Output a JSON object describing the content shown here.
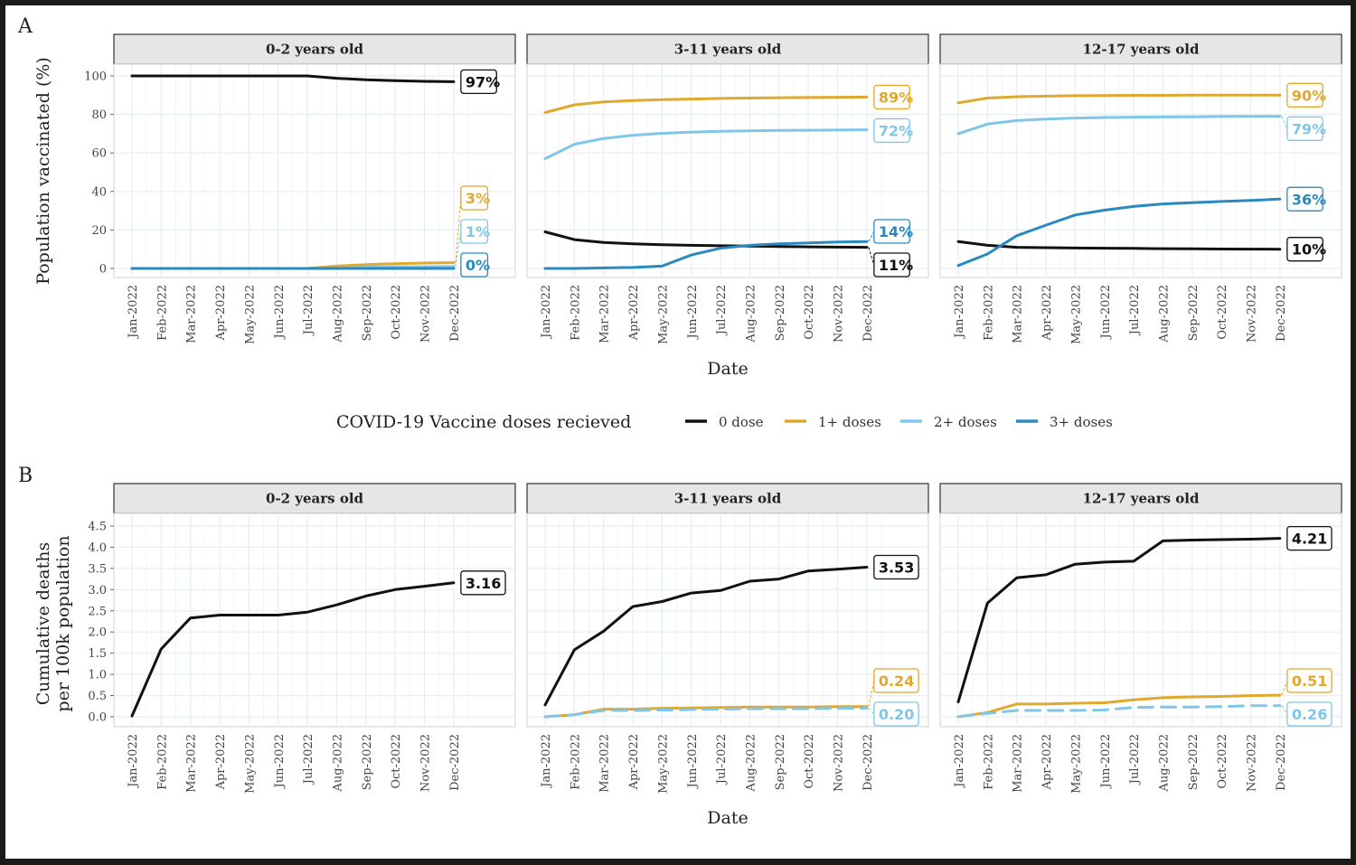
{
  "colors": {
    "0 dose": "#111111",
    "1+ doses": "#E0A82E",
    "2+ doses": "#7FC6E8",
    "3+ doses": "#2A8ABF",
    "strip_fill": "#E6E6E6",
    "grid": "#E7EEF2"
  },
  "chart_data": [
    {
      "type": "line",
      "panel": "A",
      "ylabel": "Population vaccinated (%)",
      "xlabel": "Date",
      "ylim": [
        0,
        100
      ],
      "yticks": [
        "0",
        "20",
        "40",
        "60",
        "80",
        "100"
      ],
      "categories": [
        "Jan-2022",
        "Feb-2022",
        "Mar-2022",
        "Apr-2022",
        "May-2022",
        "Jun-2022",
        "Jul-2022",
        "Aug-2022",
        "Sep-2022",
        "Oct-2022",
        "Nov-2022",
        "Dec-2022"
      ],
      "facets": [
        {
          "title": "0-2 years old",
          "series": [
            {
              "name": "0 dose",
              "values": [
                100,
                100,
                100,
                100,
                100,
                100,
                100,
                98.8,
                98,
                97.5,
                97.2,
                97
              ],
              "end_label": "97%"
            },
            {
              "name": "1+ doses",
              "values": [
                0,
                0,
                0,
                0,
                0,
                0,
                0,
                1.2,
                2,
                2.5,
                2.8,
                3
              ],
              "end_label": "3%"
            },
            {
              "name": "2+ doses",
              "values": [
                0,
                0,
                0,
                0,
                0,
                0,
                0,
                0.3,
                0.6,
                0.8,
                0.9,
                1
              ],
              "end_label": "1%"
            },
            {
              "name": "3+ doses",
              "values": [
                0,
                0,
                0,
                0,
                0,
                0,
                0,
                0,
                0,
                0,
                0,
                0
              ],
              "end_label": "0%"
            }
          ]
        },
        {
          "title": "3-11 years old",
          "series": [
            {
              "name": "0 dose",
              "values": [
                19,
                15,
                13.5,
                12.8,
                12.3,
                12,
                11.8,
                11.6,
                11.4,
                11.2,
                11.1,
                11
              ],
              "end_label": "11%"
            },
            {
              "name": "1+ doses",
              "values": [
                81,
                85,
                86.5,
                87.2,
                87.7,
                88,
                88.3,
                88.5,
                88.7,
                88.8,
                88.9,
                89
              ],
              "end_label": "89%"
            },
            {
              "name": "2+ doses",
              "values": [
                57,
                64.5,
                67.5,
                69.2,
                70.2,
                70.8,
                71.2,
                71.5,
                71.7,
                71.8,
                71.9,
                72
              ],
              "end_label": "72%"
            },
            {
              "name": "3+ doses",
              "values": [
                0,
                0,
                0.3,
                0.5,
                1.2,
                7,
                10.5,
                12,
                12.8,
                13.3,
                13.7,
                14
              ],
              "end_label": "14%"
            }
          ]
        },
        {
          "title": "12-17 years old",
          "series": [
            {
              "name": "0 dose",
              "values": [
                14,
                12,
                11,
                10.8,
                10.6,
                10.5,
                10.4,
                10.3,
                10.2,
                10.1,
                10.05,
                10
              ],
              "end_label": "10%"
            },
            {
              "name": "1+ doses",
              "values": [
                86,
                88.5,
                89.2,
                89.5,
                89.7,
                89.8,
                89.9,
                89.9,
                90,
                90,
                90,
                90
              ],
              "end_label": "90%"
            },
            {
              "name": "2+ doses",
              "values": [
                70,
                75,
                76.8,
                77.6,
                78.1,
                78.4,
                78.6,
                78.7,
                78.8,
                78.9,
                79,
                79
              ],
              "end_label": "79%"
            },
            {
              "name": "3+ doses",
              "values": [
                1.5,
                7.5,
                17,
                22.5,
                27.8,
                30.3,
                32.2,
                33.5,
                34.2,
                34.8,
                35.3,
                36
              ],
              "end_label": "36%"
            }
          ]
        }
      ]
    },
    {
      "type": "line",
      "panel": "B",
      "ylabel_lines": [
        "Cumulative deaths",
        "per 100k population"
      ],
      "xlabel": "Date",
      "ylim": [
        0,
        4.5
      ],
      "yticks": [
        "0.0",
        "0.5",
        "1.0",
        "1.5",
        "2.0",
        "2.5",
        "3.0",
        "3.5",
        "4.0",
        "4.5"
      ],
      "categories": [
        "Jan-2022",
        "Feb-2022",
        "Mar-2022",
        "Apr-2022",
        "May-2022",
        "Jun-2022",
        "Jul-2022",
        "Aug-2022",
        "Sep-2022",
        "Oct-2022",
        "Nov-2022",
        "Dec-2022"
      ],
      "facets": [
        {
          "title": "0-2 years old",
          "series": [
            {
              "name": "0 dose",
              "values": [
                0.02,
                1.6,
                2.33,
                2.4,
                2.4,
                2.4,
                2.47,
                2.64,
                2.85,
                3.0,
                3.08,
                3.16
              ],
              "end_label": "3.16"
            }
          ]
        },
        {
          "title": "3-11 years old",
          "series": [
            {
              "name": "0 dose",
              "values": [
                0.28,
                1.58,
                2.02,
                2.6,
                2.72,
                2.92,
                2.98,
                3.2,
                3.25,
                3.44,
                3.48,
                3.53
              ],
              "end_label": "3.53"
            },
            {
              "name": "1+ doses",
              "values": [
                0,
                0.05,
                0.18,
                0.18,
                0.2,
                0.21,
                0.22,
                0.23,
                0.23,
                0.23,
                0.24,
                0.24
              ],
              "end_label": "0.24"
            },
            {
              "name": "2+ doses",
              "values": [
                0,
                0.05,
                0.15,
                0.15,
                0.16,
                0.17,
                0.18,
                0.19,
                0.19,
                0.19,
                0.2,
                0.2
              ],
              "end_label": "0.20",
              "dashed": true
            }
          ]
        },
        {
          "title": "12-17 years old",
          "series": [
            {
              "name": "0 dose",
              "values": [
                0.35,
                2.68,
                3.28,
                3.35,
                3.6,
                3.65,
                3.67,
                4.15,
                4.17,
                4.18,
                4.19,
                4.21
              ],
              "end_label": "4.21"
            },
            {
              "name": "1+ doses",
              "values": [
                0,
                0.1,
                0.3,
                0.3,
                0.32,
                0.33,
                0.4,
                0.45,
                0.47,
                0.48,
                0.5,
                0.51
              ],
              "end_label": "0.51"
            },
            {
              "name": "2+ doses",
              "values": [
                0,
                0.08,
                0.15,
                0.15,
                0.15,
                0.16,
                0.22,
                0.23,
                0.23,
                0.24,
                0.26,
                0.26
              ],
              "end_label": "0.26",
              "dashed": true
            }
          ]
        }
      ]
    }
  ],
  "legend": {
    "title": "COVID-19 Vaccine doses recieved",
    "items": [
      "0 dose",
      "1+ doses",
      "2+ doses",
      "3+ doses"
    ]
  }
}
